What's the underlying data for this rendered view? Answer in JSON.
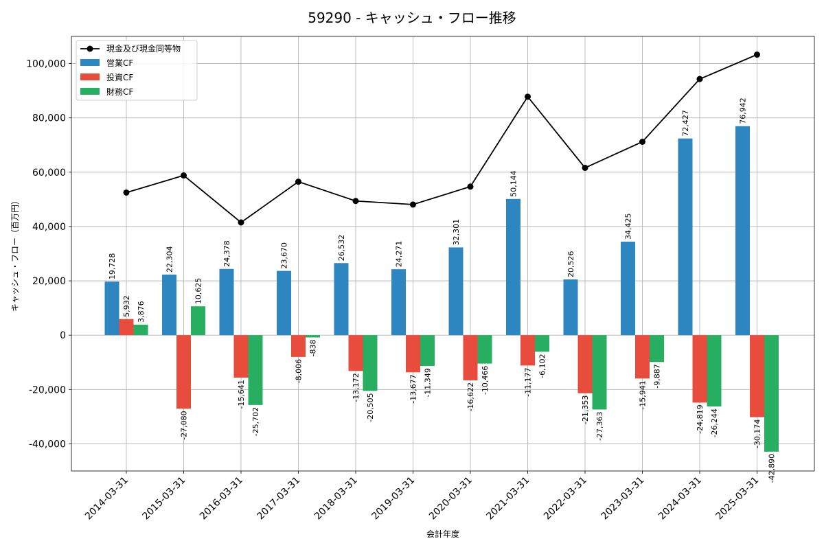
{
  "chart_data": {
    "type": "bar",
    "title": "59290 - キャッシュ・フロー推移",
    "xlabel": "会計年度",
    "ylabel": "キャッシュ・フロー（百万円）",
    "ylim": [
      -50000,
      110000
    ],
    "yticks": [
      -40000,
      -20000,
      0,
      20000,
      40000,
      60000,
      80000,
      100000
    ],
    "ytick_labels": [
      "-40,000",
      "-20,000",
      "0",
      "20,000",
      "40,000",
      "60,000",
      "80,000",
      "100,000"
    ],
    "grid": true,
    "legend_position": "top-left",
    "categories": [
      "2014-03-31",
      "2015-03-31",
      "2016-03-31",
      "2017-03-31",
      "2018-03-31",
      "2019-03-31",
      "2020-03-31",
      "2021-03-31",
      "2022-03-31",
      "2023-03-31",
      "2024-03-31",
      "2025-03-31"
    ],
    "series": [
      {
        "name": "営業CF",
        "kind": "bar",
        "color": "#2e86c1",
        "values": [
          19728,
          22304,
          24378,
          23670,
          26532,
          24271,
          32301,
          50144,
          20526,
          34425,
          72427,
          76942
        ],
        "labels": [
          "19,728",
          "22,304",
          "24,378",
          "23,670",
          "26,532",
          "24,271",
          "32,301",
          "50,144",
          "20,526",
          "34,425",
          "72,427",
          "76,942"
        ]
      },
      {
        "name": "投資CF",
        "kind": "bar",
        "color": "#e74c3c",
        "values": [
          5932,
          -27080,
          -15641,
          -8006,
          -13172,
          -13677,
          -16622,
          -11177,
          -21353,
          -15941,
          -24819,
          -30174
        ],
        "labels": [
          "5,932",
          "-27,080",
          "-15,641",
          "-8,006",
          "-13,172",
          "-13,677",
          "-16,622",
          "-11,177",
          "-21,353",
          "-15,941",
          "-24,819",
          "-30,174"
        ]
      },
      {
        "name": "財務CF",
        "kind": "bar",
        "color": "#27ae60",
        "values": [
          3876,
          10625,
          -25702,
          -838,
          -20505,
          -11349,
          -10466,
          -6102,
          -27363,
          -9887,
          -26244,
          -42890
        ],
        "labels": [
          "3,876",
          "10,625",
          "-25,702",
          "-838",
          "-20,505",
          "-11,349",
          "-10,466",
          "-6,102",
          "-27,363",
          "-9,887",
          "-26,244",
          "-42,890"
        ]
      }
    ],
    "line_series": {
      "name": "現金及び現金同等物",
      "kind": "line",
      "color": "#000000",
      "values": [
        52500,
        58800,
        41500,
        56500,
        49400,
        48100,
        54700,
        87800,
        61600,
        71200,
        94300,
        103300
      ]
    }
  }
}
